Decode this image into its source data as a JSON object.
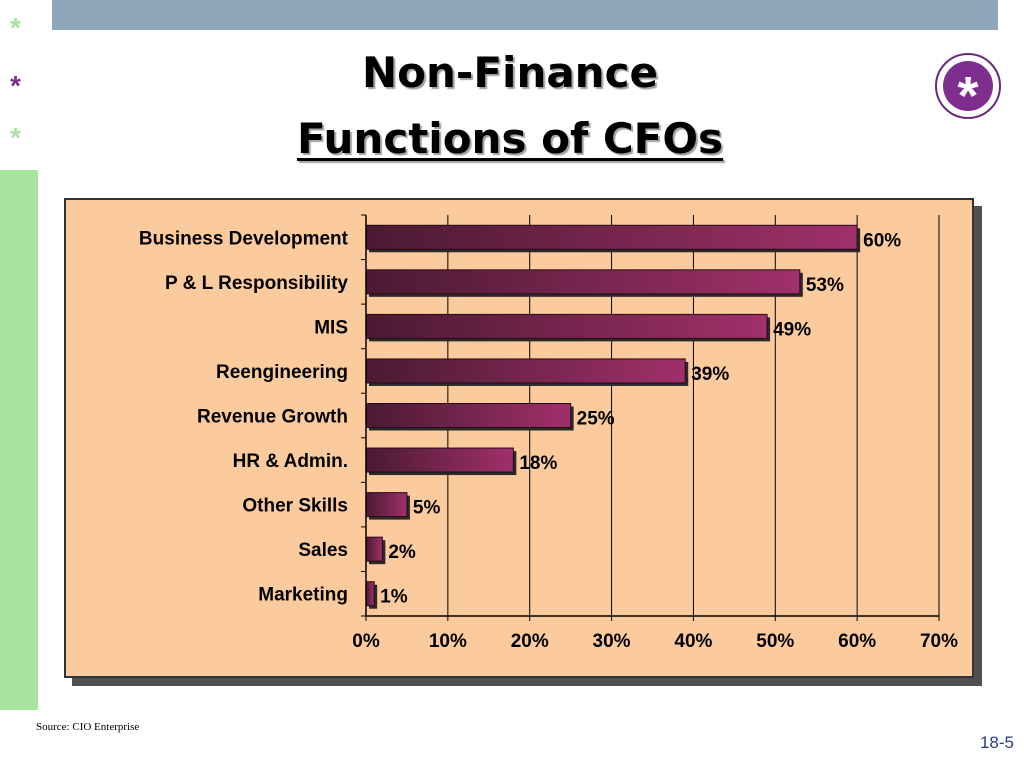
{
  "slide": {
    "title_line1": "Non-Finance",
    "title_line2": "Functions of CFOs",
    "badge_symbol": "*",
    "stars": [
      "*",
      "*",
      "*"
    ],
    "source": "Source: CIO Enterprise",
    "page_number": "18-5",
    "colors": {
      "top_bar": "#8fa7b8",
      "side_bar": "#a8e4a0",
      "star_colors": [
        "#a8e4a0",
        "#7d2e8e",
        "#a8e4a0"
      ],
      "badge": "#7d2e8e",
      "chart_background": "#fccb9d",
      "bar_dark": "#4a1a32",
      "bar_light": "#a0306a"
    }
  },
  "chart_data": {
    "type": "bar",
    "orientation": "horizontal",
    "categories": [
      "Business Development",
      "P & L Responsibility",
      "MIS",
      "Reengineering",
      "Revenue Growth",
      "HR & Admin.",
      "Other Skills",
      "Sales",
      "Marketing"
    ],
    "values": [
      60,
      53,
      49,
      39,
      25,
      18,
      5,
      2,
      1
    ],
    "data_labels": [
      "60%",
      "53%",
      "49%",
      "39%",
      "25%",
      "18%",
      "5%",
      "2%",
      "1%"
    ],
    "x_ticks": [
      "0%",
      "10%",
      "20%",
      "30%",
      "40%",
      "50%",
      "60%",
      "70%"
    ],
    "xlim": [
      0,
      70
    ],
    "grid": "vertical",
    "legend": "none",
    "title": "",
    "xlabel": "",
    "ylabel": ""
  }
}
